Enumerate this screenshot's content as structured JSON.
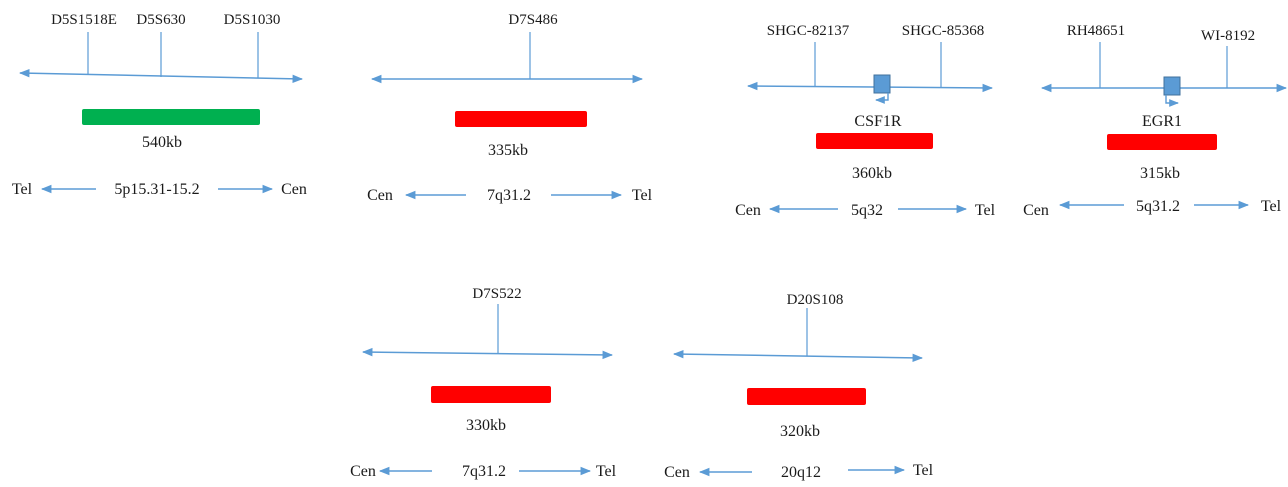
{
  "colors": {
    "line": "#5b9bd5",
    "gene_box": "#5b9bd5",
    "gene_box_stroke": "#41719c",
    "bar_green": "#00b050",
    "bar_red": "#ff0000",
    "text": "#1a1a1a"
  },
  "panels": [
    {
      "id": "5p15",
      "markers": [
        "D5S1518E",
        "D5S630",
        "D5S1030"
      ],
      "gene": "",
      "bar_color": "green",
      "size": "540kb",
      "left_label": "Tel",
      "band": "5p15.31-15.2",
      "right_label": "Cen"
    },
    {
      "id": "7q31-top",
      "markers": [
        "D7S486"
      ],
      "gene": "",
      "bar_color": "red",
      "size": "335kb",
      "left_label": "Cen",
      "band": "7q31.2",
      "right_label": "Tel"
    },
    {
      "id": "5q32",
      "markers": [
        "SHGC-82137",
        "SHGC-85368"
      ],
      "gene": "CSF1R",
      "gene_direction": "left",
      "bar_color": "red",
      "size": "360kb",
      "left_label": "Cen",
      "band": "5q32",
      "right_label": "Tel"
    },
    {
      "id": "5q31",
      "markers": [
        "RH48651",
        "WI-8192"
      ],
      "gene": "EGR1",
      "gene_direction": "right",
      "bar_color": "red",
      "size": "315kb",
      "left_label": "Cen",
      "band": "5q31.2",
      "right_label": "Tel"
    },
    {
      "id": "7q31-bottom",
      "markers": [
        "D7S522"
      ],
      "gene": "",
      "bar_color": "red",
      "size": "330kb",
      "left_label": "Cen",
      "band": "7q31.2",
      "right_label": "Tel"
    },
    {
      "id": "20q12",
      "markers": [
        "D20S108"
      ],
      "gene": "",
      "bar_color": "red",
      "size": "320kb",
      "left_label": "Cen",
      "band": "20q12",
      "right_label": "Tel"
    }
  ]
}
